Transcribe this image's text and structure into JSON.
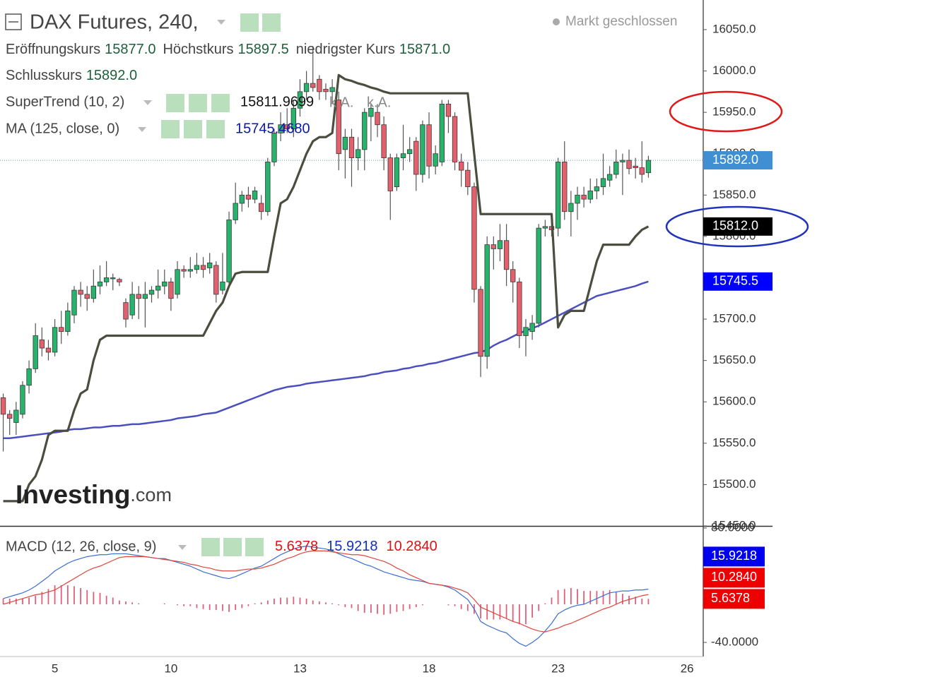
{
  "chart_data": {
    "type": "candlestick",
    "title": "DAX Futures, 240,",
    "status": "Markt geschlossen",
    "watermark": [
      "Investing",
      ".com"
    ],
    "categories": [
      null,
      null,
      null,
      null,
      null,
      null,
      null,
      null,
      "5",
      null,
      null,
      null,
      null,
      null,
      null,
      null,
      null,
      null,
      null,
      null,
      null,
      null,
      null,
      null,
      null,
      null,
      "10",
      null,
      null,
      null,
      null,
      null,
      null,
      null,
      null,
      null,
      null,
      null,
      null,
      null,
      null,
      null,
      null,
      null,
      null,
      null,
      "13",
      null,
      null,
      null,
      null,
      null,
      null,
      null,
      null,
      null,
      null,
      null,
      null,
      null,
      null,
      null,
      null,
      null,
      null,
      null,
      "18",
      null,
      null,
      null,
      null,
      null,
      null,
      null,
      null,
      null,
      null,
      null,
      null,
      null,
      null,
      null,
      null,
      null,
      null,
      null,
      "23",
      null,
      null,
      null,
      null,
      null,
      null,
      null,
      null,
      null,
      null,
      null,
      null,
      null,
      null,
      null,
      null,
      null,
      null,
      null,
      "26",
      null,
      null
    ],
    "price_legend": [
      {
        "name": "Eröffnungskurs",
        "value_label": "15877.0"
      },
      {
        "name": "Höchstkurs",
        "value_label": "15897.5"
      },
      {
        "name": "niedrigster Kurs",
        "value_label": "15871.0"
      },
      {
        "name": "Schlusskurs",
        "value_label": "15892.0"
      }
    ],
    "ohlc": {
      "up_color": "#26b36b",
      "down_color": "#e4606d",
      "open": [
        15605,
        15585,
        15575,
        15585,
        15620,
        15640,
        15675,
        15665,
        15660,
        15690,
        15685,
        15705,
        15735,
        15730,
        15725,
        15740,
        15745,
        15750,
        15748,
        15720,
        15705,
        15730,
        15725,
        15730,
        15735,
        15740,
        15745,
        15730,
        15760,
        15758,
        15760,
        15765,
        15762,
        15765,
        15735,
        15745,
        15820,
        15840,
        15850,
        15845,
        15840,
        15830,
        15890,
        15925,
        15935,
        15930,
        15955,
        15975,
        15985,
        15990,
        15978,
        15975,
        15965,
        15905,
        15920,
        15895,
        15905,
        15945,
        15950,
        15935,
        15895,
        15860,
        15895,
        15900,
        15915,
        15875,
        15935,
        15885,
        15890,
        15960,
        15945,
        15890,
        15880,
        15860,
        15736,
        15655,
        15790,
        15785,
        15795,
        15760,
        15745,
        15680,
        15685,
        15695,
        15810,
        15812,
        15810,
        15890,
        15830,
        15840,
        15850,
        15845,
        15855,
        15860,
        15868,
        15875,
        15890,
        15892,
        15885,
        15883,
        15877,
        null,
        null,
        null,
        null,
        null,
        null,
        null,
        null
      ],
      "high": [
        15610,
        15590,
        15600,
        15625,
        15650,
        15695,
        15690,
        15675,
        15700,
        15710,
        15720,
        15740,
        15745,
        15740,
        15760,
        15765,
        15770,
        15755,
        15750,
        15725,
        15745,
        15740,
        15745,
        15740,
        15760,
        15760,
        15750,
        15770,
        15765,
        15775,
        15780,
        15775,
        15780,
        15770,
        15780,
        15830,
        15865,
        15855,
        15860,
        15860,
        15850,
        15895,
        15930,
        15950,
        15955,
        15965,
        15990,
        16000,
        16030,
        15995,
        15985,
        15990,
        15975,
        15930,
        15930,
        15920,
        15955,
        15960,
        15960,
        15945,
        15900,
        15900,
        15935,
        15920,
        15920,
        15940,
        15950,
        15910,
        15965,
        15965,
        15950,
        15900,
        15890,
        15865,
        15740,
        15800,
        15800,
        15815,
        15815,
        15770,
        15750,
        15700,
        15705,
        15815,
        15820,
        15815,
        15895,
        15915,
        15855,
        15860,
        15860,
        15870,
        15870,
        15900,
        15885,
        15905,
        15900,
        15905,
        15895,
        15915,
        15897.5,
        null,
        null,
        null,
        null,
        null,
        null,
        null,
        null
      ],
      "low": [
        15540,
        15560,
        15560,
        15580,
        15610,
        15635,
        15655,
        15650,
        15655,
        15670,
        15680,
        15695,
        15715,
        15710,
        15720,
        15730,
        15740,
        15735,
        15740,
        15690,
        15700,
        15700,
        15690,
        15720,
        15725,
        15730,
        15710,
        15725,
        15750,
        15750,
        15755,
        15750,
        15755,
        15720,
        15730,
        15740,
        15815,
        15830,
        15835,
        15840,
        15820,
        15825,
        15885,
        15915,
        15925,
        15920,
        15945,
        15965,
        15975,
        15965,
        15965,
        15960,
        15880,
        15870,
        15860,
        15880,
        15880,
        15915,
        15920,
        15880,
        15820,
        15855,
        15880,
        15890,
        15855,
        15865,
        15870,
        15875,
        15885,
        15925,
        15880,
        15860,
        15850,
        15720,
        15630,
        15640,
        15760,
        15770,
        15740,
        15720,
        15665,
        15655,
        15675,
        15690,
        15800,
        15800,
        15800,
        15820,
        15800,
        15820,
        15835,
        15840,
        15845,
        15850,
        15860,
        15870,
        15850,
        15875,
        15870,
        15865,
        15871,
        null,
        null,
        null,
        null,
        null,
        null,
        null,
        null
      ],
      "close": [
        15585,
        15580,
        15590,
        15620,
        15640,
        15680,
        15665,
        15660,
        15690,
        15685,
        15710,
        15735,
        15730,
        15725,
        15740,
        15745,
        15750,
        15750,
        15745,
        15700,
        15730,
        15725,
        15730,
        15735,
        15740,
        15745,
        15725,
        15760,
        15758,
        15760,
        15765,
        15760,
        15768,
        15730,
        15745,
        15820,
        15840,
        15850,
        15845,
        15855,
        15830,
        15890,
        15925,
        15935,
        15930,
        15955,
        15975,
        15985,
        15980,
        15975,
        15975,
        15980,
        15900,
        15920,
        15895,
        15905,
        15950,
        15955,
        15935,
        15895,
        15855,
        15895,
        15900,
        15905,
        15875,
        15935,
        15885,
        15900,
        15960,
        15945,
        15890,
        15880,
        15860,
        15736,
        15655,
        15790,
        15785,
        15795,
        15760,
        15745,
        15680,
        15690,
        15695,
        15810,
        15812,
        15808,
        15890,
        15830,
        15840,
        15850,
        15845,
        15855,
        15860,
        15870,
        15875,
        15890,
        15892,
        15882,
        15883,
        15875,
        15892,
        null,
        null,
        null,
        null,
        null,
        null,
        null,
        null
      ]
    },
    "supertrend": {
      "name": "SuperTrend (10, 2)",
      "color": "#4b4e3e",
      "na_labels": [
        "k.A.",
        "k.A."
      ],
      "last_value_label": "15812.0",
      "values": [
        15480,
        15480,
        15480,
        15480,
        15500,
        15510,
        15530,
        15560,
        15565,
        15565,
        15565,
        15590,
        15610,
        15615,
        15650,
        15675,
        15680,
        15680,
        15680,
        15680,
        15680,
        15680,
        15680,
        15680,
        15680,
        15680,
        15680,
        15680,
        15680,
        15680,
        15680,
        15680,
        15695,
        15710,
        15720,
        15740,
        15755,
        15757,
        15757,
        15757,
        15757,
        15757,
        15800,
        15840,
        15845,
        15860,
        15880,
        15900,
        15915,
        15920,
        15920,
        15925,
        15995,
        15990,
        15988,
        15985,
        15983,
        15980,
        15978,
        15975,
        15973,
        15973,
        15973,
        15973,
        15973,
        15973,
        15973,
        15973,
        15973,
        15973,
        15973,
        15973,
        15973,
        15900,
        15827,
        15827,
        15827,
        15827,
        15827,
        15827,
        15827,
        15827,
        15827,
        15827,
        15827,
        15827,
        15690,
        15705,
        15710,
        15710,
        15710,
        15740,
        15770,
        15790,
        15790,
        15790,
        15790,
        15790,
        15800,
        15808,
        15811.9699,
        null,
        null,
        null,
        null,
        null,
        null,
        null,
        null
      ]
    },
    "ma": {
      "name": "MA (125, close, 0)",
      "color": "#4a4fc0",
      "legend_value_label": "15745.4680",
      "last_value_label": "15745.5",
      "values": [
        15556,
        15556,
        15557,
        15558,
        15559,
        15560,
        15561,
        15562,
        15563,
        15564,
        15566,
        15567,
        15567,
        15568,
        15569,
        15569,
        15570,
        15571,
        15571,
        15572,
        15573,
        15573,
        15574,
        15575,
        15576,
        15577,
        15578,
        15580,
        15581,
        15582,
        15583,
        15585,
        15586,
        15587,
        15590,
        15593,
        15596,
        15599,
        15602,
        15605,
        15608,
        15611,
        15614,
        15616,
        15618,
        15619,
        15620,
        15622,
        15623,
        15624,
        15625,
        15626,
        15627,
        15628,
        15629,
        15630,
        15631,
        15633,
        15634,
        15636,
        15637,
        15638,
        15640,
        15641,
        15643,
        15644,
        15646,
        15647,
        15649,
        15651,
        15653,
        15655,
        15657,
        15659,
        15660,
        15663,
        15668,
        15672,
        15675,
        15679,
        15683,
        15686,
        15689,
        15692,
        15696,
        15700,
        15704,
        15708,
        15712,
        15716,
        15720,
        15724,
        15728,
        15730,
        15732,
        15734,
        15736,
        15738,
        15740,
        15743,
        15745.468,
        null,
        null,
        null,
        null,
        null,
        null,
        null,
        null
      ]
    },
    "ylim": [
      15450,
      16085.8
    ],
    "yticks": [
      {
        "value": 15450,
        "label": "15450.0"
      },
      {
        "value": 15500,
        "label": "15500.0"
      },
      {
        "value": 15550,
        "label": "15550.0"
      },
      {
        "value": 15600,
        "label": "15600.0"
      },
      {
        "value": 15650,
        "label": "15650.0"
      },
      {
        "value": 15700,
        "label": "15700.0"
      },
      {
        "value": 15750,
        "label": "15750.0"
      },
      {
        "value": 15800,
        "label": "15800.0"
      },
      {
        "value": 15850,
        "label": "15850.0"
      },
      {
        "value": 15900,
        "label": "15900.0"
      },
      {
        "value": 15950,
        "label": "15950.0"
      },
      {
        "value": 16000,
        "label": "16000.0"
      },
      {
        "value": 16050,
        "label": "16050.0"
      }
    ],
    "macd": {
      "name": "MACD (12, 26, close, 9)",
      "ylim": [
        -54.8,
        82.2
      ],
      "yticks": [
        {
          "value": 80,
          "label": "80.0000"
        },
        {
          "value": -40,
          "label": "-40.0000"
        }
      ],
      "histogram": {
        "color": "#e0607a",
        "values": [
          6,
          6,
          6,
          6,
          7,
          9,
          13,
          16,
          20,
          20,
          20,
          19,
          17,
          15,
          13,
          12,
          9,
          7,
          4,
          3,
          2,
          1,
          0,
          0,
          0,
          1,
          0,
          -1,
          -2,
          -2,
          -4,
          -5,
          -6,
          -6,
          -7,
          -8,
          -6,
          -4,
          -2,
          1,
          2,
          4,
          6,
          7,
          7,
          8,
          7,
          6,
          4,
          3,
          2,
          1,
          -1,
          -3,
          -4,
          -7,
          -9,
          -9,
          -10,
          -11,
          -10,
          -8,
          -7,
          -5,
          -3,
          -1,
          0,
          0,
          0,
          -1,
          -2,
          -5,
          -7,
          -10,
          -15,
          -16,
          -16,
          -16,
          -15,
          -18,
          -21,
          -21,
          -14,
          -7,
          1,
          7,
          15,
          16,
          17,
          16,
          14,
          14,
          14,
          14,
          15,
          13,
          11,
          9,
          8,
          6,
          5.6378,
          null,
          null,
          null,
          null,
          null,
          null,
          null,
          null
        ]
      },
      "macd_line": {
        "color": "#3d6fd0",
        "values": [
          6,
          8,
          10,
          12,
          15,
          19,
          24,
          29,
          35,
          39,
          43,
          46,
          48,
          50,
          51,
          52,
          52,
          53,
          53,
          53,
          52,
          51,
          50,
          49,
          48,
          48,
          46,
          44,
          42,
          40,
          37,
          34,
          32,
          30,
          28,
          27,
          29,
          32,
          35,
          38,
          40,
          44,
          48,
          52,
          55,
          58,
          60,
          61,
          60,
          59,
          58,
          56,
          53,
          50,
          48,
          45,
          42,
          40,
          37,
          34,
          32,
          30,
          28,
          26,
          25,
          24,
          22,
          21,
          20,
          18,
          15,
          10,
          5,
          -5,
          -18,
          -22,
          -25,
          -28,
          -30,
          -36,
          -41,
          -44,
          -40,
          -35,
          -28,
          -20,
          -10,
          -6,
          -3,
          -1,
          0,
          3,
          6,
          9,
          12,
          13,
          14,
          14,
          15,
          15,
          15.9218,
          null,
          null,
          null,
          null,
          null,
          null,
          null,
          null
        ]
      },
      "signal_line": {
        "color": "#e0453c",
        "value_label": "10.2840",
        "values": [
          0,
          2,
          4,
          6,
          8,
          10,
          11,
          13,
          15,
          19,
          23,
          27,
          31,
          35,
          38,
          40,
          43,
          46,
          49,
          50,
          50,
          50,
          50,
          49,
          48,
          47,
          46,
          45,
          44,
          42,
          41,
          39,
          38,
          36,
          35,
          35,
          35,
          36,
          37,
          37,
          38,
          40,
          42,
          45,
          48,
          50,
          53,
          55,
          56,
          56,
          56,
          55,
          54,
          53,
          52,
          52,
          51,
          49,
          47,
          45,
          42,
          38,
          35,
          31,
          28,
          25,
          22,
          21,
          20,
          19,
          17,
          15,
          12,
          5,
          -3,
          -6,
          -9,
          -12,
          -15,
          -18,
          -20,
          -23,
          -26,
          -28,
          -29,
          -27,
          -25,
          -22,
          -20,
          -17,
          -14,
          -11,
          -8,
          -5,
          -3,
          0,
          3,
          5,
          7,
          9,
          10.284,
          null,
          null,
          null,
          null,
          null,
          null,
          null,
          null
        ]
      }
    }
  }
}
